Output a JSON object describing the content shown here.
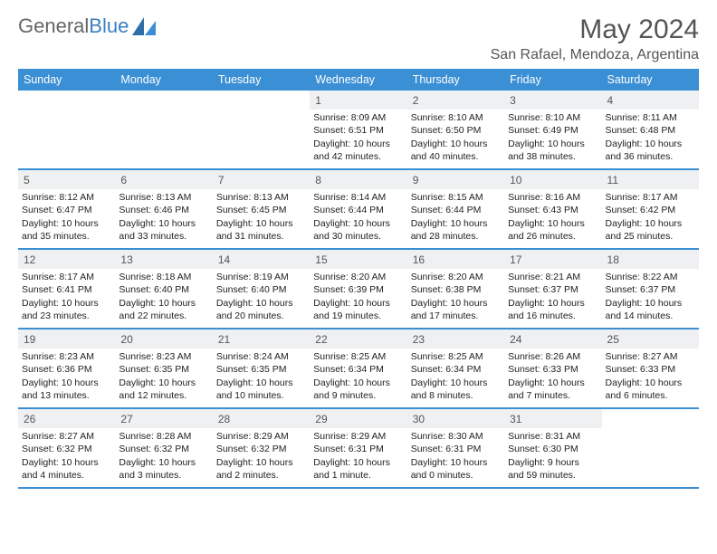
{
  "logo": {
    "text1": "General",
    "text2": "Blue"
  },
  "title": "May 2024",
  "location": "San Rafael, Mendoza, Argentina",
  "colors": {
    "header_bg": "#3b8fd4",
    "header_text": "#ffffff",
    "daynum_bg": "#eef0f2",
    "row_border": "#3b8fd4",
    "body_text": "#222222",
    "title_text": "#555555"
  },
  "weekdays": [
    "Sunday",
    "Monday",
    "Tuesday",
    "Wednesday",
    "Thursday",
    "Friday",
    "Saturday"
  ],
  "weeks": [
    [
      {
        "empty": true
      },
      {
        "empty": true
      },
      {
        "empty": true
      },
      {
        "num": "1",
        "sunrise": "Sunrise: 8:09 AM",
        "sunset": "Sunset: 6:51 PM",
        "daylight1": "Daylight: 10 hours",
        "daylight2": "and 42 minutes."
      },
      {
        "num": "2",
        "sunrise": "Sunrise: 8:10 AM",
        "sunset": "Sunset: 6:50 PM",
        "daylight1": "Daylight: 10 hours",
        "daylight2": "and 40 minutes."
      },
      {
        "num": "3",
        "sunrise": "Sunrise: 8:10 AM",
        "sunset": "Sunset: 6:49 PM",
        "daylight1": "Daylight: 10 hours",
        "daylight2": "and 38 minutes."
      },
      {
        "num": "4",
        "sunrise": "Sunrise: 8:11 AM",
        "sunset": "Sunset: 6:48 PM",
        "daylight1": "Daylight: 10 hours",
        "daylight2": "and 36 minutes."
      }
    ],
    [
      {
        "num": "5",
        "sunrise": "Sunrise: 8:12 AM",
        "sunset": "Sunset: 6:47 PM",
        "daylight1": "Daylight: 10 hours",
        "daylight2": "and 35 minutes."
      },
      {
        "num": "6",
        "sunrise": "Sunrise: 8:13 AM",
        "sunset": "Sunset: 6:46 PM",
        "daylight1": "Daylight: 10 hours",
        "daylight2": "and 33 minutes."
      },
      {
        "num": "7",
        "sunrise": "Sunrise: 8:13 AM",
        "sunset": "Sunset: 6:45 PM",
        "daylight1": "Daylight: 10 hours",
        "daylight2": "and 31 minutes."
      },
      {
        "num": "8",
        "sunrise": "Sunrise: 8:14 AM",
        "sunset": "Sunset: 6:44 PM",
        "daylight1": "Daylight: 10 hours",
        "daylight2": "and 30 minutes."
      },
      {
        "num": "9",
        "sunrise": "Sunrise: 8:15 AM",
        "sunset": "Sunset: 6:44 PM",
        "daylight1": "Daylight: 10 hours",
        "daylight2": "and 28 minutes."
      },
      {
        "num": "10",
        "sunrise": "Sunrise: 8:16 AM",
        "sunset": "Sunset: 6:43 PM",
        "daylight1": "Daylight: 10 hours",
        "daylight2": "and 26 minutes."
      },
      {
        "num": "11",
        "sunrise": "Sunrise: 8:17 AM",
        "sunset": "Sunset: 6:42 PM",
        "daylight1": "Daylight: 10 hours",
        "daylight2": "and 25 minutes."
      }
    ],
    [
      {
        "num": "12",
        "sunrise": "Sunrise: 8:17 AM",
        "sunset": "Sunset: 6:41 PM",
        "daylight1": "Daylight: 10 hours",
        "daylight2": "and 23 minutes."
      },
      {
        "num": "13",
        "sunrise": "Sunrise: 8:18 AM",
        "sunset": "Sunset: 6:40 PM",
        "daylight1": "Daylight: 10 hours",
        "daylight2": "and 22 minutes."
      },
      {
        "num": "14",
        "sunrise": "Sunrise: 8:19 AM",
        "sunset": "Sunset: 6:40 PM",
        "daylight1": "Daylight: 10 hours",
        "daylight2": "and 20 minutes."
      },
      {
        "num": "15",
        "sunrise": "Sunrise: 8:20 AM",
        "sunset": "Sunset: 6:39 PM",
        "daylight1": "Daylight: 10 hours",
        "daylight2": "and 19 minutes."
      },
      {
        "num": "16",
        "sunrise": "Sunrise: 8:20 AM",
        "sunset": "Sunset: 6:38 PM",
        "daylight1": "Daylight: 10 hours",
        "daylight2": "and 17 minutes."
      },
      {
        "num": "17",
        "sunrise": "Sunrise: 8:21 AM",
        "sunset": "Sunset: 6:37 PM",
        "daylight1": "Daylight: 10 hours",
        "daylight2": "and 16 minutes."
      },
      {
        "num": "18",
        "sunrise": "Sunrise: 8:22 AM",
        "sunset": "Sunset: 6:37 PM",
        "daylight1": "Daylight: 10 hours",
        "daylight2": "and 14 minutes."
      }
    ],
    [
      {
        "num": "19",
        "sunrise": "Sunrise: 8:23 AM",
        "sunset": "Sunset: 6:36 PM",
        "daylight1": "Daylight: 10 hours",
        "daylight2": "and 13 minutes."
      },
      {
        "num": "20",
        "sunrise": "Sunrise: 8:23 AM",
        "sunset": "Sunset: 6:35 PM",
        "daylight1": "Daylight: 10 hours",
        "daylight2": "and 12 minutes."
      },
      {
        "num": "21",
        "sunrise": "Sunrise: 8:24 AM",
        "sunset": "Sunset: 6:35 PM",
        "daylight1": "Daylight: 10 hours",
        "daylight2": "and 10 minutes."
      },
      {
        "num": "22",
        "sunrise": "Sunrise: 8:25 AM",
        "sunset": "Sunset: 6:34 PM",
        "daylight1": "Daylight: 10 hours",
        "daylight2": "and 9 minutes."
      },
      {
        "num": "23",
        "sunrise": "Sunrise: 8:25 AM",
        "sunset": "Sunset: 6:34 PM",
        "daylight1": "Daylight: 10 hours",
        "daylight2": "and 8 minutes."
      },
      {
        "num": "24",
        "sunrise": "Sunrise: 8:26 AM",
        "sunset": "Sunset: 6:33 PM",
        "daylight1": "Daylight: 10 hours",
        "daylight2": "and 7 minutes."
      },
      {
        "num": "25",
        "sunrise": "Sunrise: 8:27 AM",
        "sunset": "Sunset: 6:33 PM",
        "daylight1": "Daylight: 10 hours",
        "daylight2": "and 6 minutes."
      }
    ],
    [
      {
        "num": "26",
        "sunrise": "Sunrise: 8:27 AM",
        "sunset": "Sunset: 6:32 PM",
        "daylight1": "Daylight: 10 hours",
        "daylight2": "and 4 minutes."
      },
      {
        "num": "27",
        "sunrise": "Sunrise: 8:28 AM",
        "sunset": "Sunset: 6:32 PM",
        "daylight1": "Daylight: 10 hours",
        "daylight2": "and 3 minutes."
      },
      {
        "num": "28",
        "sunrise": "Sunrise: 8:29 AM",
        "sunset": "Sunset: 6:32 PM",
        "daylight1": "Daylight: 10 hours",
        "daylight2": "and 2 minutes."
      },
      {
        "num": "29",
        "sunrise": "Sunrise: 8:29 AM",
        "sunset": "Sunset: 6:31 PM",
        "daylight1": "Daylight: 10 hours",
        "daylight2": "and 1 minute."
      },
      {
        "num": "30",
        "sunrise": "Sunrise: 8:30 AM",
        "sunset": "Sunset: 6:31 PM",
        "daylight1": "Daylight: 10 hours",
        "daylight2": "and 0 minutes."
      },
      {
        "num": "31",
        "sunrise": "Sunrise: 8:31 AM",
        "sunset": "Sunset: 6:30 PM",
        "daylight1": "Daylight: 9 hours",
        "daylight2": "and 59 minutes."
      },
      {
        "empty": true
      }
    ]
  ]
}
